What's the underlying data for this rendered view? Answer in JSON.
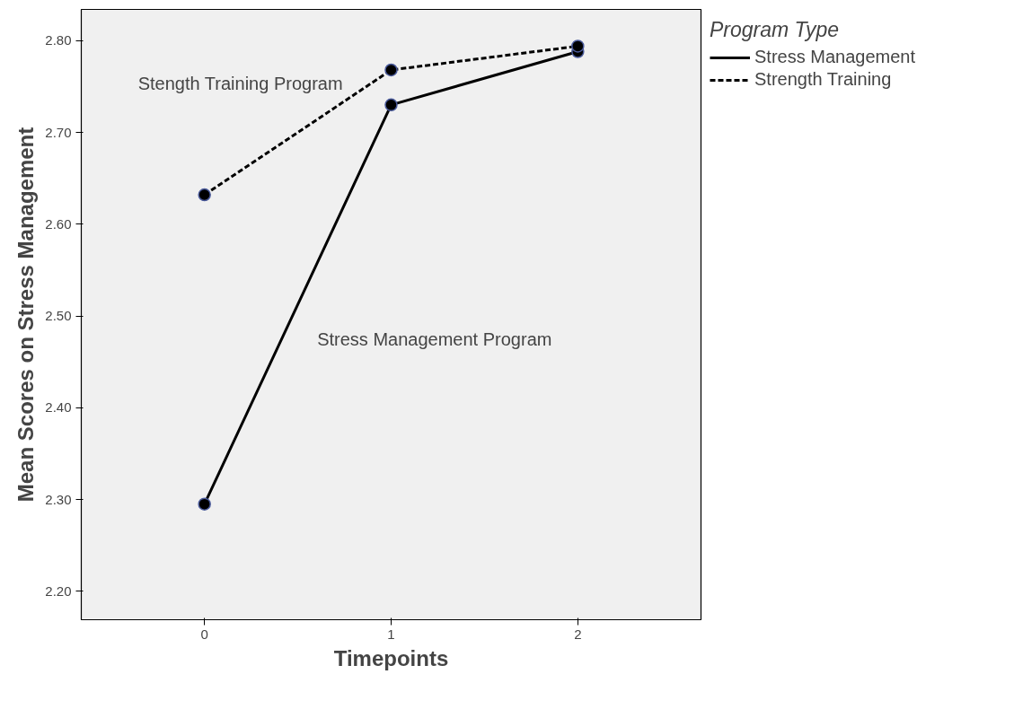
{
  "chart_data": {
    "type": "line",
    "xlabel": "Timepoints",
    "ylabel": "Mean Scores on Stress Management",
    "legend_title": "Program Type",
    "x": [
      0,
      1,
      2
    ],
    "series": [
      {
        "name": "Stress Management",
        "color": "#000000",
        "values": [
          2.295,
          2.73,
          2.788
        ],
        "line_style": "solid"
      },
      {
        "name": "Strength Training",
        "color": "#000000",
        "values": [
          2.632,
          2.768,
          2.794
        ],
        "line_style": "dashed"
      }
    ],
    "xlim": [
      -0.66,
      2.66
    ],
    "ylim": [
      2.169,
      2.834
    ],
    "xticks": [
      0,
      1,
      2
    ],
    "yticks": [
      {
        "value": 2.2,
        "label": "2.20"
      },
      {
        "value": 2.3,
        "label": "2.30"
      },
      {
        "value": 2.4,
        "label": "2.40"
      },
      {
        "value": 2.5,
        "label": "2.50"
      },
      {
        "value": 2.6,
        "label": "2.60"
      },
      {
        "value": 2.7,
        "label": "2.70"
      },
      {
        "value": 2.8,
        "label": "2.80"
      }
    ],
    "annotations": [
      "Stength Training Program",
      "Stress Management Program"
    ],
    "marker": "circle",
    "grid": false,
    "legend": "top right"
  }
}
